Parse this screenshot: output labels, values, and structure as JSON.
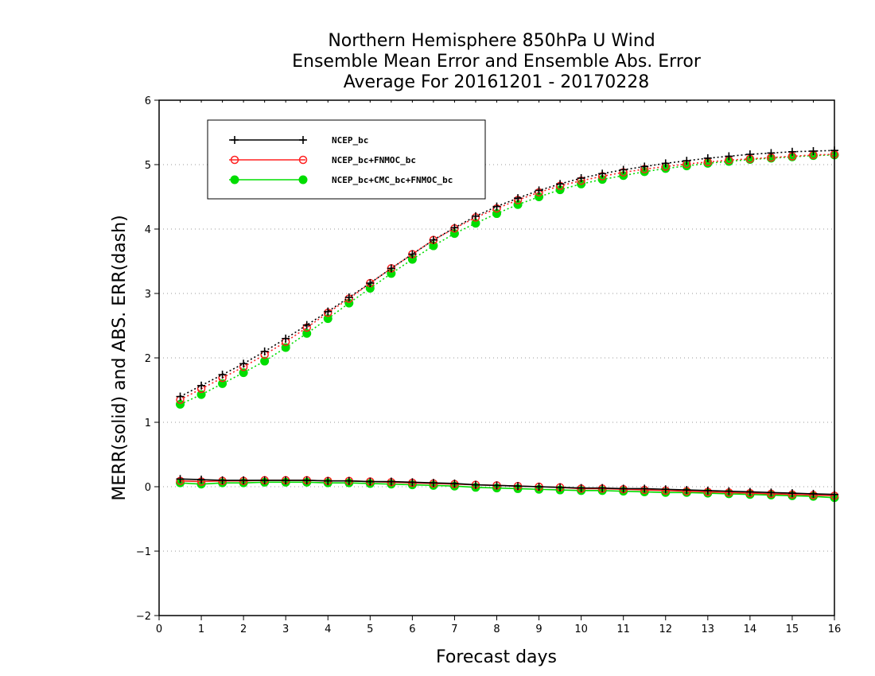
{
  "chart_data": {
    "type": "line",
    "title": [
      "Northern Hemisphere 850hPa U Wind",
      "Ensemble Mean Error and Ensemble Abs. Error",
      "Average For 20161201 - 20170228"
    ],
    "xlabel": "Forecast days",
    "ylabel": "MERR(solid) and ABS. ERR(dash)",
    "xlim": [
      0,
      16
    ],
    "ylim": [
      -2,
      6
    ],
    "xticks": [
      "0",
      "1",
      "2",
      "3",
      "4",
      "5",
      "6",
      "7",
      "8",
      "9",
      "10",
      "11",
      "12",
      "13",
      "14",
      "15",
      "16"
    ],
    "yticks": [
      "−2",
      "−1",
      "0",
      "1",
      "2",
      "3",
      "4",
      "5",
      "6"
    ],
    "grid": "horizontal dotted",
    "legend_placement": "top-left",
    "x": [
      0.5,
      1,
      1.5,
      2,
      2.5,
      3,
      3.5,
      4,
      4.5,
      5,
      5.5,
      6,
      6.5,
      7,
      7.5,
      8,
      8.5,
      9,
      9.5,
      10,
      10.5,
      11,
      11.5,
      12,
      12.5,
      13,
      13.5,
      14,
      14.5,
      15,
      15.5,
      16
    ],
    "series": [
      {
        "name": "NCEP_bc",
        "color": "#000000",
        "marker": "plus",
        "merr": [
          0.12,
          0.11,
          0.1,
          0.1,
          0.1,
          0.1,
          0.1,
          0.09,
          0.09,
          0.08,
          0.08,
          0.07,
          0.06,
          0.05,
          0.03,
          0.02,
          0.01,
          0.0,
          -0.01,
          -0.02,
          -0.02,
          -0.03,
          -0.03,
          -0.04,
          -0.05,
          -0.06,
          -0.07,
          -0.08,
          -0.09,
          -0.1,
          -0.11,
          -0.12
        ],
        "abs_err": [
          1.4,
          1.57,
          1.74,
          1.91,
          2.1,
          2.3,
          2.51,
          2.72,
          2.94,
          3.16,
          3.39,
          3.61,
          3.83,
          4.02,
          4.2,
          4.35,
          4.48,
          4.6,
          4.7,
          4.79,
          4.86,
          4.92,
          4.97,
          5.02,
          5.06,
          5.1,
          5.13,
          5.16,
          5.18,
          5.2,
          5.21,
          5.22
        ]
      },
      {
        "name": "NCEP_bc+FNMOC_bc",
        "color": "#ff2020",
        "marker": "open-circle",
        "merr": [
          0.09,
          0.08,
          0.09,
          0.09,
          0.1,
          0.1,
          0.1,
          0.09,
          0.09,
          0.08,
          0.07,
          0.06,
          0.05,
          0.04,
          0.03,
          0.02,
          0.01,
          0.0,
          -0.01,
          -0.03,
          -0.03,
          -0.04,
          -0.05,
          -0.06,
          -0.07,
          -0.08,
          -0.09,
          -0.1,
          -0.11,
          -0.12,
          -0.13,
          -0.14
        ],
        "abs_err": [
          1.35,
          1.52,
          1.69,
          1.86,
          2.05,
          2.25,
          2.47,
          2.7,
          2.92,
          3.16,
          3.39,
          3.61,
          3.83,
          4.01,
          4.18,
          4.32,
          4.45,
          4.57,
          4.67,
          4.75,
          4.82,
          4.88,
          4.93,
          4.97,
          5.01,
          5.04,
          5.07,
          5.09,
          5.11,
          5.13,
          5.15,
          5.16
        ]
      },
      {
        "name": "NCEP_bc+CMC_bc+FNMOC_bc",
        "color": "#00dd00",
        "marker": "filled-circle",
        "merr": [
          0.06,
          0.04,
          0.06,
          0.06,
          0.07,
          0.07,
          0.07,
          0.06,
          0.06,
          0.05,
          0.04,
          0.03,
          0.02,
          0.01,
          -0.01,
          -0.02,
          -0.03,
          -0.04,
          -0.05,
          -0.06,
          -0.06,
          -0.07,
          -0.08,
          -0.09,
          -0.09,
          -0.1,
          -0.11,
          -0.12,
          -0.13,
          -0.14,
          -0.15,
          -0.17
        ],
        "abs_err": [
          1.28,
          1.43,
          1.6,
          1.77,
          1.95,
          2.16,
          2.38,
          2.61,
          2.85,
          3.08,
          3.31,
          3.53,
          3.74,
          3.93,
          4.09,
          4.24,
          4.38,
          4.5,
          4.61,
          4.7,
          4.77,
          4.83,
          4.89,
          4.94,
          4.98,
          5.02,
          5.05,
          5.08,
          5.1,
          5.12,
          5.14,
          5.15
        ]
      }
    ]
  }
}
